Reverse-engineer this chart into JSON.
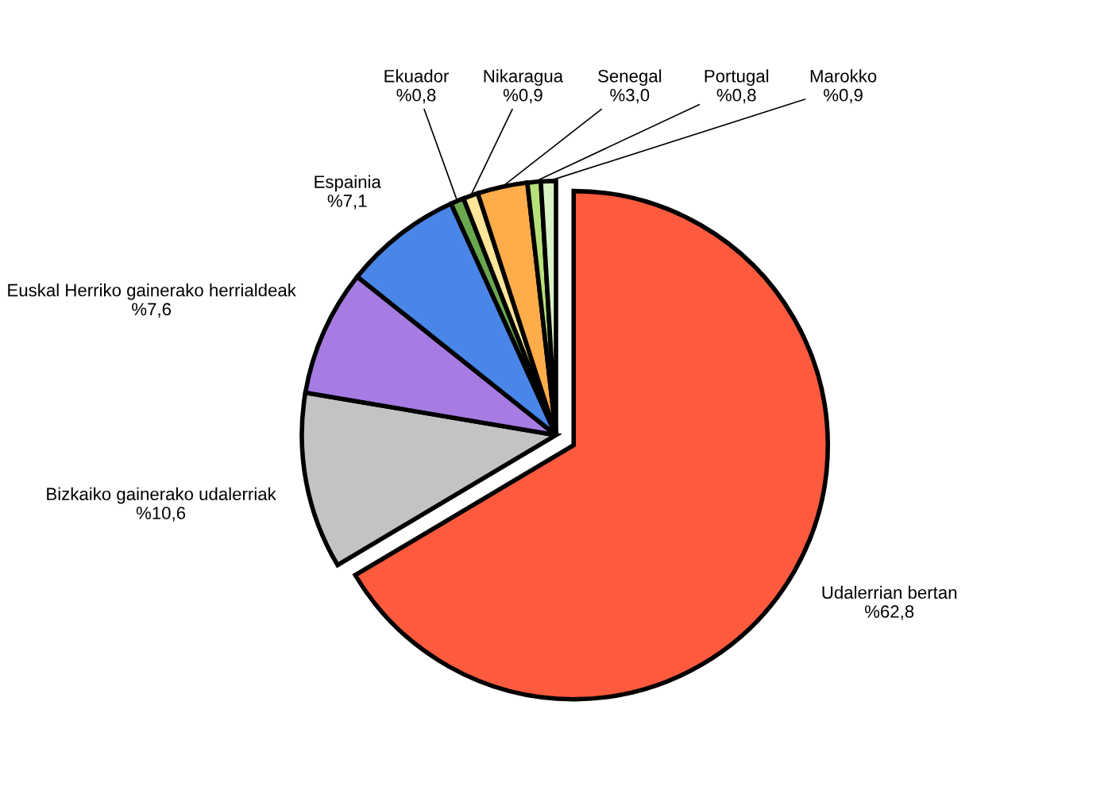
{
  "chart_data": {
    "type": "pie",
    "categories": [
      "Udalerrian bertan",
      "Bizkaiko gainerako udalerriak",
      "Euskal Herriko gainerako herrialdeak",
      "Espainia",
      "Ekuador",
      "Nikaragua",
      "Senegal",
      "Portugal",
      "Marokko"
    ],
    "values": [
      62.8,
      10.6,
      7.6,
      7.1,
      0.8,
      0.9,
      3.0,
      0.8,
      0.9
    ],
    "value_labels": [
      "%62,8",
      "%10,6",
      "%7,6",
      "%7,1",
      "%0,8",
      "%0,9",
      "%3,0",
      "%0,8",
      "%0,9"
    ],
    "colors": [
      "#fd5a3e",
      "#c3c3c3",
      "#a67ce2",
      "#4a86e8",
      "#6aa84f",
      "#ffe599",
      "#ffad4a",
      "#b6e07a",
      "#d9f2c5"
    ]
  }
}
